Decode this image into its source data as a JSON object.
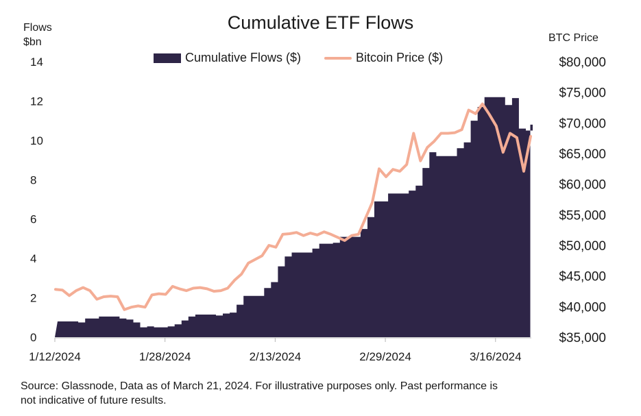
{
  "chart_data": {
    "type": "area",
    "title": "Cumulative ETF Flows",
    "ylabel_left": [
      "Flows",
      "$bn"
    ],
    "ylabel_right": "BTC Price",
    "ylim_left": [
      0,
      14
    ],
    "ylim_right": [
      35000,
      80000
    ],
    "yticks_left": [
      "0",
      "2",
      "4",
      "6",
      "8",
      "10",
      "12",
      "14"
    ],
    "yticks_right": [
      "$35,000",
      "$40,000",
      "$45,000",
      "$50,000",
      "$55,000",
      "$60,000",
      "$65,000",
      "$70,000",
      "$75,000",
      "$80,000"
    ],
    "xticks": [
      "1/12/2024",
      "1/28/2024",
      "2/13/2024",
      "2/29/2024",
      "3/16/2024"
    ],
    "grid": false,
    "legend_position": "top-center",
    "series": [
      {
        "name": "Cumulative Flows ($)",
        "kind": "area",
        "axis": "left",
        "color": "#2e2547",
        "x": [
          "2024-01-12",
          "2024-01-13",
          "2024-01-14",
          "2024-01-15",
          "2024-01-16",
          "2024-01-17",
          "2024-01-18",
          "2024-01-19",
          "2024-01-20",
          "2024-01-21",
          "2024-01-22",
          "2024-01-23",
          "2024-01-24",
          "2024-01-25",
          "2024-01-26",
          "2024-01-27",
          "2024-01-28",
          "2024-01-29",
          "2024-01-30",
          "2024-01-31",
          "2024-02-01",
          "2024-02-02",
          "2024-02-03",
          "2024-02-04",
          "2024-02-05",
          "2024-02-06",
          "2024-02-07",
          "2024-02-08",
          "2024-02-09",
          "2024-02-10",
          "2024-02-11",
          "2024-02-12",
          "2024-02-13",
          "2024-02-14",
          "2024-02-15",
          "2024-02-16",
          "2024-02-17",
          "2024-02-18",
          "2024-02-19",
          "2024-02-20",
          "2024-02-21",
          "2024-02-22",
          "2024-02-23",
          "2024-02-24",
          "2024-02-25",
          "2024-02-26",
          "2024-02-27",
          "2024-02-28",
          "2024-02-29",
          "2024-03-01",
          "2024-03-02",
          "2024-03-03",
          "2024-03-04",
          "2024-03-05",
          "2024-03-06",
          "2024-03-07",
          "2024-03-08",
          "2024-03-09",
          "2024-03-10",
          "2024-03-11",
          "2024-03-12",
          "2024-03-13",
          "2024-03-14",
          "2024-03-15",
          "2024-03-16",
          "2024-03-17",
          "2024-03-18",
          "2024-03-19",
          "2024-03-20",
          "2024-03-21"
        ],
        "values": [
          0.8,
          0.8,
          0.8,
          0.75,
          0.95,
          0.95,
          1.05,
          1.05,
          1.05,
          0.95,
          0.9,
          0.75,
          0.5,
          0.55,
          0.5,
          0.5,
          0.55,
          0.65,
          0.85,
          1.05,
          1.15,
          1.15,
          1.15,
          1.1,
          1.2,
          1.25,
          1.65,
          2.1,
          2.1,
          2.1,
          2.5,
          2.8,
          3.6,
          4.1,
          4.3,
          4.3,
          4.3,
          4.5,
          4.75,
          4.75,
          4.8,
          5.1,
          5.1,
          5.1,
          5.5,
          6.1,
          6.9,
          6.9,
          7.3,
          7.3,
          7.3,
          7.45,
          7.7,
          8.6,
          9.4,
          9.2,
          9.2,
          9.2,
          9.6,
          9.9,
          11.0,
          11.7,
          12.2,
          12.2,
          12.2,
          11.8,
          12.15,
          10.6,
          10.5,
          10.8
        ]
      },
      {
        "name": "Bitcoin Price ($)",
        "kind": "line",
        "axis": "right",
        "color": "#f4ad95",
        "x": [
          "2024-01-12",
          "2024-01-13",
          "2024-01-14",
          "2024-01-15",
          "2024-01-16",
          "2024-01-17",
          "2024-01-18",
          "2024-01-19",
          "2024-01-20",
          "2024-01-21",
          "2024-01-22",
          "2024-01-23",
          "2024-01-24",
          "2024-01-25",
          "2024-01-26",
          "2024-01-27",
          "2024-01-28",
          "2024-01-29",
          "2024-01-30",
          "2024-01-31",
          "2024-02-01",
          "2024-02-02",
          "2024-02-03",
          "2024-02-04",
          "2024-02-05",
          "2024-02-06",
          "2024-02-07",
          "2024-02-08",
          "2024-02-09",
          "2024-02-10",
          "2024-02-11",
          "2024-02-12",
          "2024-02-13",
          "2024-02-14",
          "2024-02-15",
          "2024-02-16",
          "2024-02-17",
          "2024-02-18",
          "2024-02-19",
          "2024-02-20",
          "2024-02-21",
          "2024-02-22",
          "2024-02-23",
          "2024-02-24",
          "2024-02-25",
          "2024-02-26",
          "2024-02-27",
          "2024-02-28",
          "2024-02-29",
          "2024-03-01",
          "2024-03-02",
          "2024-03-03",
          "2024-03-04",
          "2024-03-05",
          "2024-03-06",
          "2024-03-07",
          "2024-03-08",
          "2024-03-09",
          "2024-03-10",
          "2024-03-11",
          "2024-03-12",
          "2024-03-13",
          "2024-03-14",
          "2024-03-15",
          "2024-03-16",
          "2024-03-17",
          "2024-03-18",
          "2024-03-19",
          "2024-03-20",
          "2024-03-21"
        ],
        "values": [
          42800,
          42700,
          41800,
          42600,
          43100,
          42600,
          41200,
          41600,
          41700,
          41600,
          39500,
          39900,
          40100,
          39900,
          41900,
          42100,
          42000,
          43300,
          42900,
          42600,
          43000,
          43100,
          42900,
          42500,
          42600,
          43000,
          44300,
          45300,
          47100,
          47700,
          48300,
          50000,
          49700,
          51800,
          51900,
          52100,
          51600,
          52000,
          51700,
          52200,
          51800,
          51300,
          50800,
          51600,
          51800,
          54400,
          57000,
          62500,
          61200,
          62400,
          62100,
          63200,
          68300,
          63800,
          66000,
          67000,
          68300,
          68300,
          68400,
          68900,
          72100,
          71500,
          73100,
          71400,
          69500,
          65200,
          68300,
          67600,
          62100,
          67800
        ]
      }
    ]
  },
  "source_text": "Source: Glassnode, Data as of March 21, 2024. For illustrative purposes only. Past performance is not indicative of future results."
}
